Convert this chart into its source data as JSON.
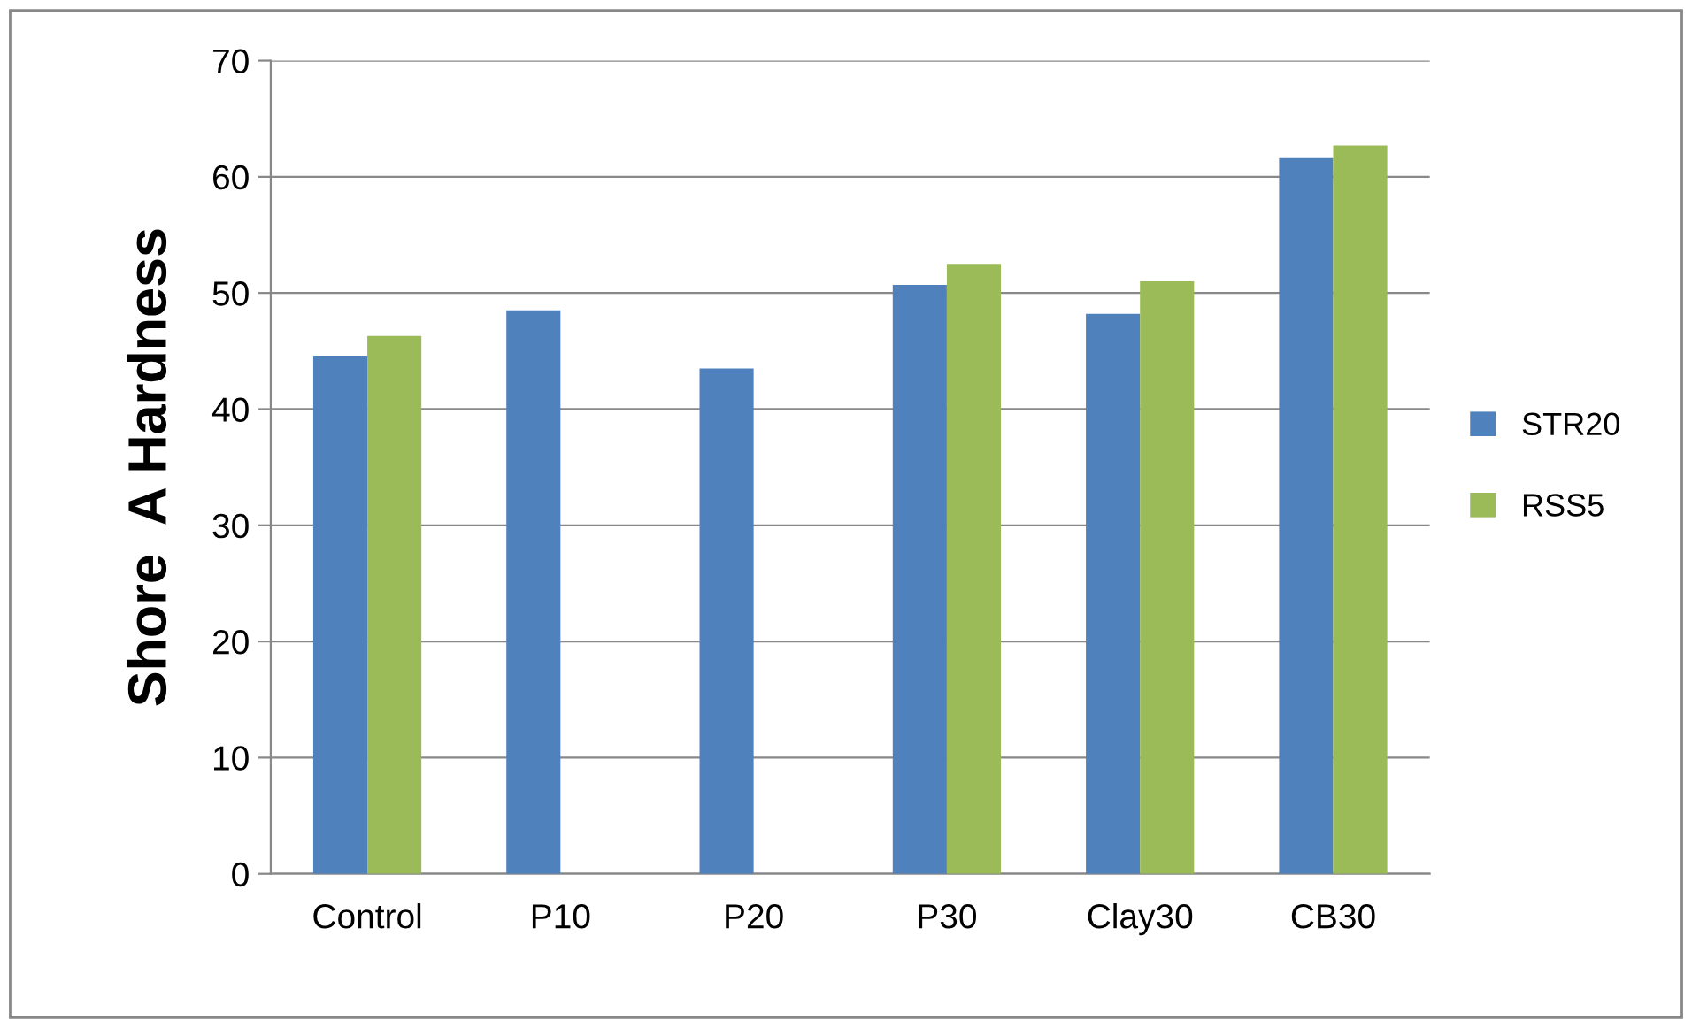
{
  "chart_data": {
    "type": "bar",
    "ylabel": "Shore  A Hardness",
    "categories": [
      "Control",
      "P10",
      "P20",
      "P30",
      "Clay30",
      "CB30"
    ],
    "series": [
      {
        "name": "STR20",
        "color": "#4f81bd",
        "values": [
          44.6,
          48.5,
          43.5,
          50.7,
          48.2,
          61.6
        ]
      },
      {
        "name": "RSS5",
        "color": "#9bbb59",
        "values": [
          46.3,
          null,
          null,
          52.5,
          51.0,
          62.7
        ]
      }
    ],
    "ylim": [
      0,
      70
    ],
    "yticks": [
      0,
      10,
      20,
      30,
      40,
      50,
      60,
      70
    ],
    "grid": "y",
    "legend": "right"
  }
}
